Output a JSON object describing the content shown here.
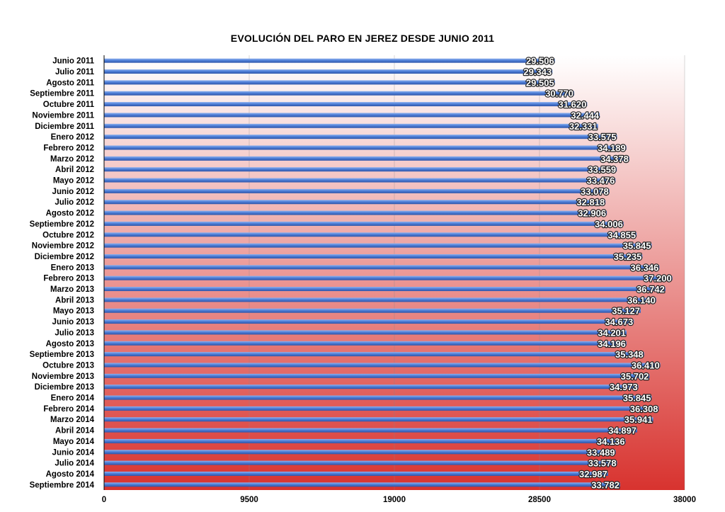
{
  "chart_data": {
    "type": "bar",
    "orientation": "horizontal",
    "title": "EVOLUCIÓN DEL PARO EN JEREZ DESDE JUNIO 2011",
    "xlabel": "",
    "ylabel": "",
    "xlim": [
      0,
      38000
    ],
    "ticks": [
      "0",
      "9500",
      "19000",
      "28500",
      "38000"
    ],
    "tick_values": [
      0,
      9500,
      19000,
      28500,
      38000
    ],
    "grid": "vertical",
    "background": "gradient white-to-red",
    "categories": [
      "Junio 2011",
      "Julio 2011",
      "Agosto 2011",
      "Septiembre 2011",
      "Octubre 2011",
      "Noviembre 2011",
      "Diciembre 2011",
      "Enero 2012",
      "Febrero 2012",
      "Marzo 2012",
      "Abril 2012",
      "Mayo 2012",
      "Junio 2012",
      "Julio 2012",
      "Agosto 2012",
      "Septiembre 2012",
      "Octubre 2012",
      "Noviembre 2012",
      "Diciembre 2012",
      "Enero 2013",
      "Febrero 2013",
      "Marzo 2013",
      "Abril 2013",
      "Mayo 2013",
      "Junio 2013",
      "Julio 2013",
      "Agosto 2013",
      "Septiembre 2013",
      "Octubre 2013",
      "Noviembre 2013",
      "Diciembre 2013",
      "Enero 2014",
      "Febrero 2014",
      "Marzo 2014",
      "Abril 2014",
      "Mayo 2014",
      "Junio 2014",
      "Julio 2014",
      "Agosto 2014",
      "Septiembre 2014"
    ],
    "values": [
      29506,
      29343,
      29505,
      30770,
      31620,
      32444,
      32331,
      33575,
      34189,
      34378,
      33559,
      33476,
      33078,
      32818,
      32906,
      34006,
      34855,
      35845,
      35235,
      36346,
      37200,
      36742,
      36140,
      35127,
      34673,
      34201,
      34196,
      35348,
      36410,
      35702,
      34973,
      35845,
      36308,
      35941,
      34897,
      34136,
      33489,
      33578,
      32987,
      33782
    ],
    "value_labels": [
      "29.506",
      "29.343",
      "29.505",
      "30.770",
      "31.620",
      "32.444",
      "32.331",
      "33.575",
      "34.189",
      "34.378",
      "33.559",
      "33.476",
      "33.078",
      "32.818",
      "32.906",
      "34.006",
      "34.855",
      "35.845",
      "35.235",
      "36.346",
      "37.200",
      "36.742",
      "36.140",
      "35.127",
      "34.673",
      "34.201",
      "34.196",
      "35.348",
      "36.410",
      "35.702",
      "34.973",
      "35.845",
      "36.308",
      "35.941",
      "34.897",
      "34.136",
      "33.489",
      "33.578",
      "32.987",
      "33.782"
    ],
    "colors": {
      "bar": "#4f7fd8",
      "bar_light": "#8fb2ef",
      "bar_dark": "#2f55a8",
      "bg_top": "#ffffff",
      "bg_bottom": "#d8332f",
      "grid": "#888888"
    }
  }
}
